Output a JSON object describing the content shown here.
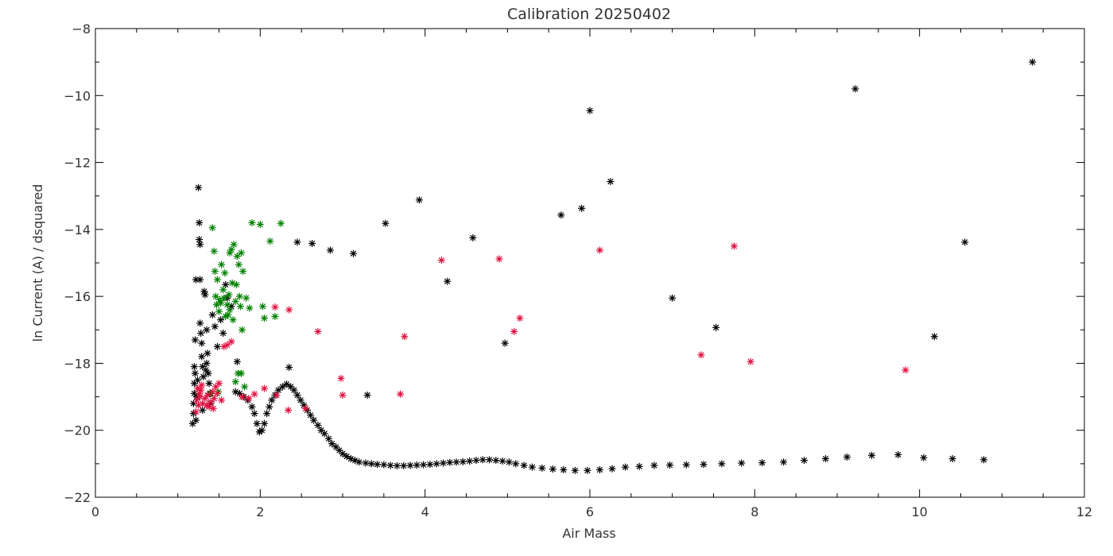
{
  "chart_data": {
    "type": "scatter",
    "title": "Calibration 20250402",
    "xlabel": "Air Mass",
    "ylabel": "ln Current (A) / dsquared",
    "xlim": [
      0,
      12
    ],
    "ylim": [
      -22,
      -8
    ],
    "x_ticks": [
      "0",
      "2",
      "4",
      "6",
      "8",
      "10",
      "12"
    ],
    "y_ticks": [
      "-8",
      "-10",
      "-12",
      "-14",
      "-16",
      "-18",
      "-20",
      "-22"
    ],
    "grid": false,
    "legend": "none",
    "series": [
      {
        "color": "#000000",
        "marker": "asterisk",
        "points": [
          [
            1.18,
            -19.8
          ],
          [
            1.19,
            -19.5
          ],
          [
            1.19,
            -19.2
          ],
          [
            1.2,
            -18.9
          ],
          [
            1.2,
            -18.6
          ],
          [
            1.21,
            -18.3
          ],
          [
            1.2,
            -18.1
          ],
          [
            1.21,
            -17.3
          ],
          [
            1.22,
            -15.5
          ],
          [
            1.22,
            -19.7
          ],
          [
            1.23,
            -19.0
          ],
          [
            1.24,
            -18.5
          ],
          [
            1.25,
            -12.75
          ],
          [
            1.26,
            -13.8
          ],
          [
            1.26,
            -14.3
          ],
          [
            1.27,
            -14.45
          ],
          [
            1.27,
            -16.8
          ],
          [
            1.28,
            -17.1
          ],
          [
            1.29,
            -17.4
          ],
          [
            1.29,
            -17.8
          ],
          [
            1.3,
            -18.1
          ],
          [
            1.31,
            -18.4
          ],
          [
            1.3,
            -19.4
          ],
          [
            1.32,
            -15.85
          ],
          [
            1.33,
            -15.95
          ],
          [
            1.34,
            -18.2
          ],
          [
            1.35,
            -18.0
          ],
          [
            1.36,
            -17.7
          ],
          [
            1.37,
            -18.3
          ],
          [
            1.38,
            -18.6
          ],
          [
            1.39,
            -18.9
          ],
          [
            1.4,
            -19.2
          ],
          [
            1.42,
            -16.55
          ],
          [
            1.45,
            -16.9
          ],
          [
            1.48,
            -17.5
          ],
          [
            1.52,
            -16.7
          ],
          [
            1.55,
            -17.1
          ],
          [
            1.58,
            -15.65
          ],
          [
            1.6,
            -16.05
          ],
          [
            1.65,
            -16.3
          ],
          [
            1.7,
            -18.85
          ],
          [
            1.72,
            -17.95
          ],
          [
            1.75,
            -18.9
          ],
          [
            1.8,
            -19.0
          ],
          [
            1.85,
            -19.1
          ],
          [
            1.9,
            -19.3
          ],
          [
            1.93,
            -19.5
          ],
          [
            1.96,
            -19.8
          ],
          [
            1.99,
            -20.05
          ],
          [
            2.02,
            -20.0
          ],
          [
            2.05,
            -19.8
          ],
          [
            2.08,
            -19.5
          ],
          [
            2.11,
            -19.3
          ],
          [
            2.14,
            -19.1
          ],
          [
            2.18,
            -18.95
          ],
          [
            2.22,
            -18.8
          ],
          [
            2.27,
            -18.7
          ],
          [
            2.32,
            -18.62
          ],
          [
            2.35,
            -18.12
          ],
          [
            2.37,
            -18.7
          ],
          [
            2.41,
            -18.8
          ],
          [
            2.45,
            -18.95
          ],
          [
            2.49,
            -19.1
          ],
          [
            2.53,
            -19.25
          ],
          [
            2.57,
            -19.4
          ],
          [
            2.61,
            -19.55
          ],
          [
            2.65,
            -19.7
          ],
          [
            2.7,
            -19.85
          ],
          [
            2.74,
            -20.0
          ],
          [
            2.78,
            -20.1
          ],
          [
            2.83,
            -20.25
          ],
          [
            2.87,
            -20.4
          ],
          [
            2.92,
            -20.5
          ],
          [
            2.96,
            -20.6
          ],
          [
            3.0,
            -20.7
          ],
          [
            3.05,
            -20.78
          ],
          [
            3.1,
            -20.85
          ],
          [
            3.15,
            -20.9
          ],
          [
            3.2,
            -20.95
          ],
          [
            3.28,
            -20.98
          ],
          [
            3.35,
            -21.0
          ],
          [
            3.42,
            -21.02
          ],
          [
            3.5,
            -21.03
          ],
          [
            3.58,
            -21.05
          ],
          [
            3.66,
            -21.06
          ],
          [
            3.74,
            -21.06
          ],
          [
            3.82,
            -21.05
          ],
          [
            3.9,
            -21.04
          ],
          [
            3.98,
            -21.03
          ],
          [
            4.06,
            -21.02
          ],
          [
            4.14,
            -21.0
          ],
          [
            4.22,
            -20.98
          ],
          [
            4.3,
            -20.96
          ],
          [
            4.38,
            -20.95
          ],
          [
            4.46,
            -20.94
          ],
          [
            4.54,
            -20.92
          ],
          [
            4.62,
            -20.9
          ],
          [
            4.7,
            -20.88
          ],
          [
            4.78,
            -20.88
          ],
          [
            4.86,
            -20.9
          ],
          [
            4.94,
            -20.92
          ],
          [
            5.02,
            -20.95
          ],
          [
            5.1,
            -21.0
          ],
          [
            5.2,
            -21.05
          ],
          [
            5.3,
            -21.1
          ],
          [
            5.42,
            -21.13
          ],
          [
            5.55,
            -21.16
          ],
          [
            5.68,
            -21.18
          ],
          [
            5.82,
            -21.2
          ],
          [
            5.97,
            -21.2
          ],
          [
            6.12,
            -21.18
          ],
          [
            6.27,
            -21.15
          ],
          [
            6.43,
            -21.1
          ],
          [
            6.6,
            -21.08
          ],
          [
            6.78,
            -21.05
          ],
          [
            6.97,
            -21.04
          ],
          [
            7.17,
            -21.03
          ],
          [
            7.38,
            -21.02
          ],
          [
            7.6,
            -21.0
          ],
          [
            7.84,
            -20.98
          ],
          [
            8.09,
            -20.97
          ],
          [
            8.35,
            -20.95
          ],
          [
            8.6,
            -20.9
          ],
          [
            8.86,
            -20.85
          ],
          [
            9.12,
            -20.8
          ],
          [
            9.42,
            -20.75
          ],
          [
            9.74,
            -20.73
          ],
          [
            10.05,
            -20.82
          ],
          [
            10.4,
            -20.85
          ],
          [
            10.78,
            -20.88
          ],
          [
            2.45,
            -14.38
          ],
          [
            2.63,
            -14.42
          ],
          [
            2.85,
            -14.62
          ],
          [
            3.13,
            -14.72
          ],
          [
            3.3,
            -18.95
          ],
          [
            3.52,
            -13.82
          ],
          [
            3.93,
            -13.12
          ],
          [
            4.27,
            -15.55
          ],
          [
            4.58,
            -14.25
          ],
          [
            4.97,
            -17.4
          ],
          [
            5.65,
            -13.57
          ],
          [
            5.9,
            -13.37
          ],
          [
            6.0,
            -10.45
          ],
          [
            6.25,
            -12.57
          ],
          [
            7.0,
            -16.05
          ],
          [
            7.53,
            -16.93
          ],
          [
            9.22,
            -9.8
          ],
          [
            10.18,
            -17.2
          ],
          [
            10.55,
            -14.38
          ],
          [
            11.37,
            -9.0
          ],
          [
            1.27,
            -15.5
          ],
          [
            1.35,
            -17.0
          ]
        ]
      },
      {
        "color": "#008000",
        "marker": "asterisk",
        "points": [
          [
            1.4,
            -18.9
          ],
          [
            1.42,
            -13.95
          ],
          [
            1.44,
            -14.65
          ],
          [
            1.45,
            -15.25
          ],
          [
            1.46,
            -16.0
          ],
          [
            1.47,
            -16.25
          ],
          [
            1.48,
            -15.5
          ],
          [
            1.5,
            -16.45
          ],
          [
            1.52,
            -16.2
          ],
          [
            1.53,
            -15.05
          ],
          [
            1.55,
            -15.8
          ],
          [
            1.56,
            -16.05
          ],
          [
            1.57,
            -15.3
          ],
          [
            1.58,
            -16.6
          ],
          [
            1.6,
            -16.25
          ],
          [
            1.62,
            -15.95
          ],
          [
            1.63,
            -16.4
          ],
          [
            1.65,
            -14.6
          ],
          [
            1.67,
            -16.7
          ],
          [
            1.68,
            -14.45
          ],
          [
            1.7,
            -16.15
          ],
          [
            1.71,
            -15.65
          ],
          [
            1.72,
            -14.8
          ],
          [
            1.74,
            -15.05
          ],
          [
            1.75,
            -16.0
          ],
          [
            1.76,
            -16.3
          ],
          [
            1.77,
            -14.7
          ],
          [
            1.78,
            -17.0
          ],
          [
            1.79,
            -15.25
          ],
          [
            1.81,
            -18.7
          ],
          [
            1.83,
            -16.05
          ],
          [
            1.87,
            -16.35
          ],
          [
            1.9,
            -13.8
          ],
          [
            2.0,
            -13.85
          ],
          [
            2.03,
            -16.3
          ],
          [
            2.05,
            -16.65
          ],
          [
            2.12,
            -14.35
          ],
          [
            2.18,
            -16.6
          ],
          [
            2.25,
            -13.82
          ],
          [
            1.73,
            -18.3
          ],
          [
            1.77,
            -18.3
          ],
          [
            1.7,
            -18.55
          ],
          [
            1.66,
            -15.6
          ],
          [
            1.61,
            -16.55
          ],
          [
            1.63,
            -14.7
          ],
          [
            1.51,
            -16.1
          ],
          [
            1.49,
            -18.85
          ]
        ]
      },
      {
        "color": "#e0103f",
        "marker": "asterisk",
        "points": [
          [
            1.22,
            -19.45
          ],
          [
            1.23,
            -19.1
          ],
          [
            1.24,
            -18.75
          ],
          [
            1.25,
            -19.25
          ],
          [
            1.26,
            -18.9
          ],
          [
            1.27,
            -19.0
          ],
          [
            1.28,
            -18.8
          ],
          [
            1.3,
            -19.2
          ],
          [
            1.33,
            -19.05
          ],
          [
            1.36,
            -18.95
          ],
          [
            1.38,
            -19.3
          ],
          [
            1.4,
            -19.15
          ],
          [
            1.42,
            -18.85
          ],
          [
            1.44,
            -19.05
          ],
          [
            1.46,
            -18.7
          ],
          [
            1.48,
            -18.9
          ],
          [
            1.5,
            -18.6
          ],
          [
            1.53,
            -19.1
          ],
          [
            1.56,
            -17.5
          ],
          [
            1.6,
            -17.45
          ],
          [
            1.65,
            -17.35
          ],
          [
            1.78,
            -19.0
          ],
          [
            1.86,
            -19.05
          ],
          [
            1.93,
            -18.92
          ],
          [
            2.05,
            -18.75
          ],
          [
            2.18,
            -16.32
          ],
          [
            2.2,
            -18.95
          ],
          [
            2.34,
            -19.4
          ],
          [
            2.35,
            -16.4
          ],
          [
            2.55,
            -19.35
          ],
          [
            2.7,
            -17.05
          ],
          [
            2.98,
            -18.45
          ],
          [
            3.0,
            -18.95
          ],
          [
            3.7,
            -18.92
          ],
          [
            3.75,
            -17.2
          ],
          [
            4.2,
            -14.92
          ],
          [
            4.9,
            -14.88
          ],
          [
            5.08,
            -17.05
          ],
          [
            5.15,
            -16.65
          ],
          [
            6.12,
            -14.62
          ],
          [
            7.35,
            -17.75
          ],
          [
            7.75,
            -14.5
          ],
          [
            7.95,
            -17.95
          ],
          [
            9.83,
            -18.2
          ],
          [
            1.29,
            -18.65
          ],
          [
            1.35,
            -19.25
          ],
          [
            1.43,
            -19.35
          ]
        ]
      }
    ]
  }
}
